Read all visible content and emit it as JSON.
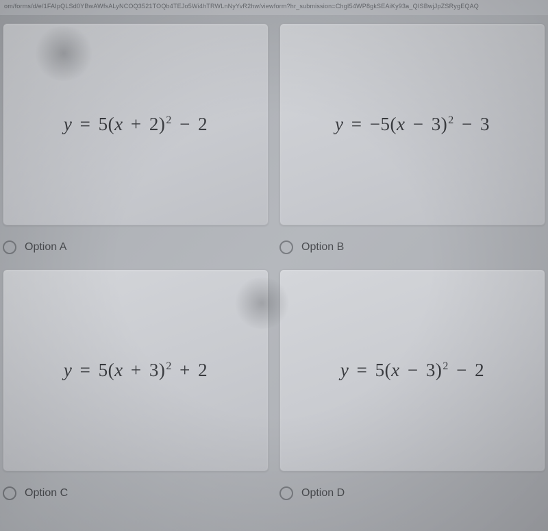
{
  "url_bar": "om/forms/d/e/1FAIpQLSd0YBwAWfsALyNCOQ3521TOQb4TEJo5Wi4hTRWLnNyYvR2hw/viewform?hr_submission=ChgI54WP8gkSEAiKy93a_QISBwjJpZSRygEQAQ",
  "options": {
    "a": {
      "equation_html": "<span class='var'>y</span> <span class='op'>=</span> <span class='num'>5(</span><span class='var'>x</span> <span class='op'>+</span> <span class='num'>2)</span><sup>2</sup> <span class='op minus'>−</span> <span class='num'>2</span>",
      "label": "Option A"
    },
    "b": {
      "equation_html": "<span class='var'>y</span> <span class='op'>=</span> <span class='minus'>−</span><span class='num'>5(</span><span class='var'>x</span> <span class='op minus'>−</span> <span class='num'>3)</span><sup>2</sup> <span class='op minus'>−</span> <span class='num'>3</span>",
      "label": "Option B"
    },
    "c": {
      "equation_html": "<span class='var'>y</span> <span class='op'>=</span> <span class='num'>5(</span><span class='var'>x</span> <span class='op'>+</span> <span class='num'>3)</span><sup>2</sup> <span class='op'>+</span> <span class='num'>2</span>",
      "label": "Option C"
    },
    "d": {
      "equation_html": "<span class='var'>y</span> <span class='op'>=</span> <span class='num'>5(</span><span class='var'>x</span> <span class='op minus'>−</span> <span class='num'>3)</span><sup>2</sup> <span class='op minus'>−</span> <span class='num'>2</span>",
      "label": "Option D"
    }
  }
}
